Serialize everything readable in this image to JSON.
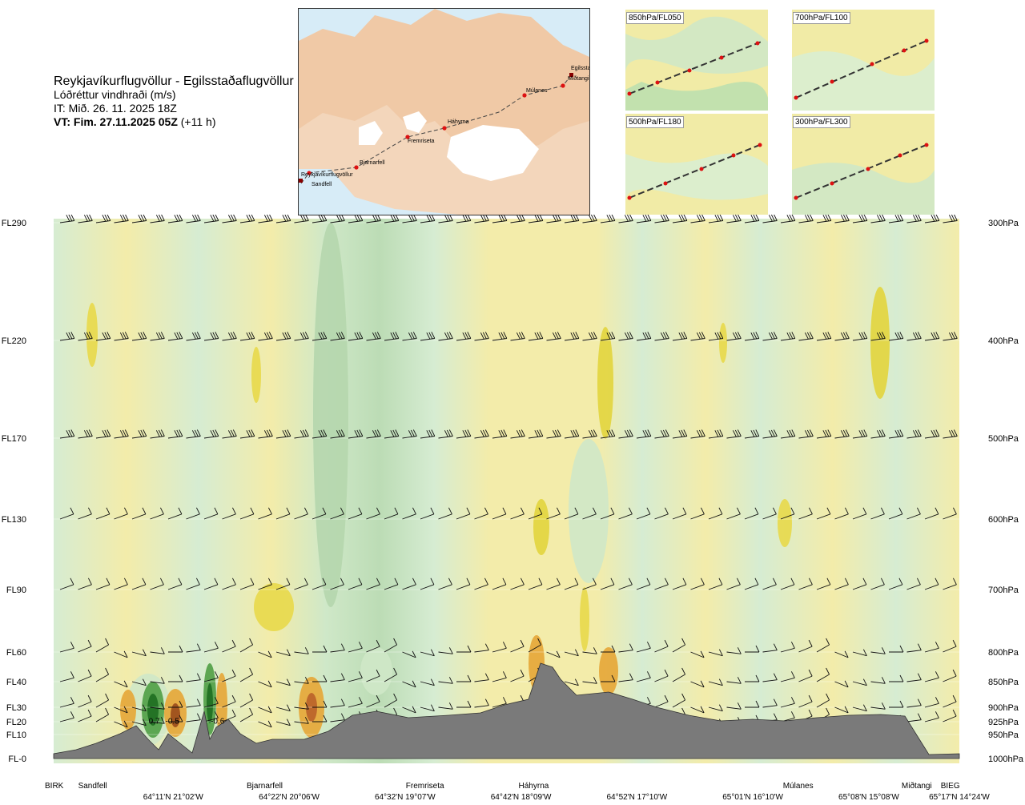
{
  "header": {
    "title": "Reykjavíkurflugvöllur - Egilsstaðaflugvöllur",
    "subtitle": "Lóðréttur vindhraði (m/s)",
    "issue_time": "IT: Mið. 26. 11. 2025 18Z",
    "valid_label": "VT: Fim. 27.11.2025 05Z",
    "valid_offset": "(+11 h)"
  },
  "route_map": {
    "stations": [
      "Reykjavíkurflugvöllur",
      "Sandfell",
      "Bjarnarfell",
      "Fremriseta",
      "Háhyrna",
      "Múlanes",
      "Egilsstaðir",
      "Miðtangi"
    ]
  },
  "thumbnails": [
    {
      "label": "850hPa/FL050"
    },
    {
      "label": "700hPa/FL100"
    },
    {
      "label": "500hPa/FL180"
    },
    {
      "label": "300hPa/FL300"
    }
  ],
  "chart_data": {
    "type": "heatmap",
    "title": "Reykjavíkurflugvöllur - Egilsstaðaflugvöllur",
    "quantity": "Lóðréttur vindhraði (m/s)",
    "left_axis": {
      "ticks": [
        {
          "label": "FL290",
          "hpa": 300
        },
        {
          "label": "FL220",
          "hpa": 400
        },
        {
          "label": "FL170",
          "hpa": 500
        },
        {
          "label": "FL130",
          "hpa": 600
        },
        {
          "label": "FL90",
          "hpa": 700
        },
        {
          "label": "FL60",
          "hpa": 800
        },
        {
          "label": "FL40",
          "hpa": 850
        },
        {
          "label": "FL30",
          "hpa": 900
        },
        {
          "label": "FL20",
          "hpa": 925
        },
        {
          "label": "FL10",
          "hpa": 950
        },
        {
          "label": "FL-0",
          "hpa": 1000
        }
      ]
    },
    "right_axis": {
      "ticks": [
        "300hPa",
        "400hPa",
        "500hPa",
        "600hPa",
        "700hPa",
        "800hPa",
        "850hPa",
        "900hPa",
        "925hPa",
        "950hPa",
        "1000hPa"
      ]
    },
    "stations": [
      {
        "name": "BIRK",
        "pos": 0.0
      },
      {
        "name": "Sandfell",
        "pos": 0.043
      },
      {
        "name": "Bjarnarfell",
        "pos": 0.233
      },
      {
        "name": "Fremriseta",
        "pos": 0.41
      },
      {
        "name": "Háhyrna",
        "pos": 0.53
      },
      {
        "name": "Múlanes",
        "pos": 0.822
      },
      {
        "name": "Miðtangi",
        "pos": 0.953
      },
      {
        "name": "BIEG",
        "pos": 0.99
      }
    ],
    "coordinates": [
      {
        "label": "64°11'N 21°02'W",
        "pos": 0.132
      },
      {
        "label": "64°22'N 20°06'W",
        "pos": 0.26
      },
      {
        "label": "64°32'N 19°07'W",
        "pos": 0.388
      },
      {
        "label": "64°42'N 18°09'W",
        "pos": 0.516
      },
      {
        "label": "64°52'N 17°10'W",
        "pos": 0.644
      },
      {
        "label": "65°01'N 16°10'W",
        "pos": 0.772
      },
      {
        "label": "65°08'N 15°08'W",
        "pos": 0.9
      },
      {
        "label": "65°17'N 14°24'W",
        "pos": 1.0
      }
    ],
    "value_labels": [
      {
        "text": "0.7",
        "pos": 0.111,
        "hpa": 923
      },
      {
        "text": "-0.5",
        "pos": 0.131,
        "hpa": 923
      },
      {
        "text": "-0.6",
        "pos": 0.181,
        "hpa": 923
      }
    ],
    "legend": "none",
    "grid": "pressure levels"
  }
}
